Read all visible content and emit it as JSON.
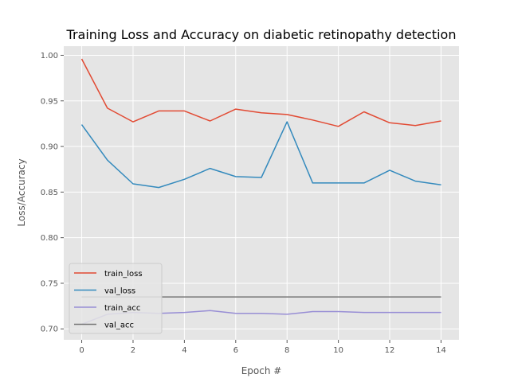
{
  "chart_data": {
    "type": "line",
    "title": "Training Loss and Accuracy on diabetic retinopathy detection",
    "xlabel": "Epoch #",
    "ylabel": "Loss/Accuracy",
    "xlim": [
      -0.7,
      14.7
    ],
    "ylim": [
      0.688,
      1.01
    ],
    "x_ticks": [
      0,
      2,
      4,
      6,
      8,
      10,
      12,
      14
    ],
    "y_ticks": [
      0.7,
      0.75,
      0.8,
      0.85,
      0.9,
      0.95,
      1.0
    ],
    "grid": true,
    "legend_position": "lower-left",
    "x": [
      0,
      1,
      2,
      3,
      4,
      5,
      6,
      7,
      8,
      9,
      10,
      11,
      12,
      13,
      14
    ],
    "series": [
      {
        "name": "train_loss",
        "color": "#E24A33",
        "values": [
          0.996,
          0.942,
          0.927,
          0.939,
          0.939,
          0.928,
          0.941,
          0.937,
          0.935,
          0.929,
          0.922,
          0.938,
          0.926,
          0.923,
          0.928
        ]
      },
      {
        "name": "val_loss",
        "color": "#348ABD",
        "values": [
          0.924,
          0.885,
          0.859,
          0.855,
          0.864,
          0.876,
          0.867,
          0.866,
          0.927,
          0.86,
          0.86,
          0.86,
          0.874,
          0.862,
          0.858
        ]
      },
      {
        "name": "train_acc",
        "color": "#988ED5",
        "values": [
          0.705,
          0.716,
          0.718,
          0.717,
          0.718,
          0.72,
          0.717,
          0.717,
          0.716,
          0.719,
          0.719,
          0.718,
          0.718,
          0.718,
          0.718
        ]
      },
      {
        "name": "val_acc",
        "color": "#777777",
        "values": [
          0.735,
          0.735,
          0.735,
          0.735,
          0.735,
          0.735,
          0.735,
          0.735,
          0.735,
          0.735,
          0.735,
          0.735,
          0.735,
          0.735,
          0.735
        ]
      }
    ]
  }
}
